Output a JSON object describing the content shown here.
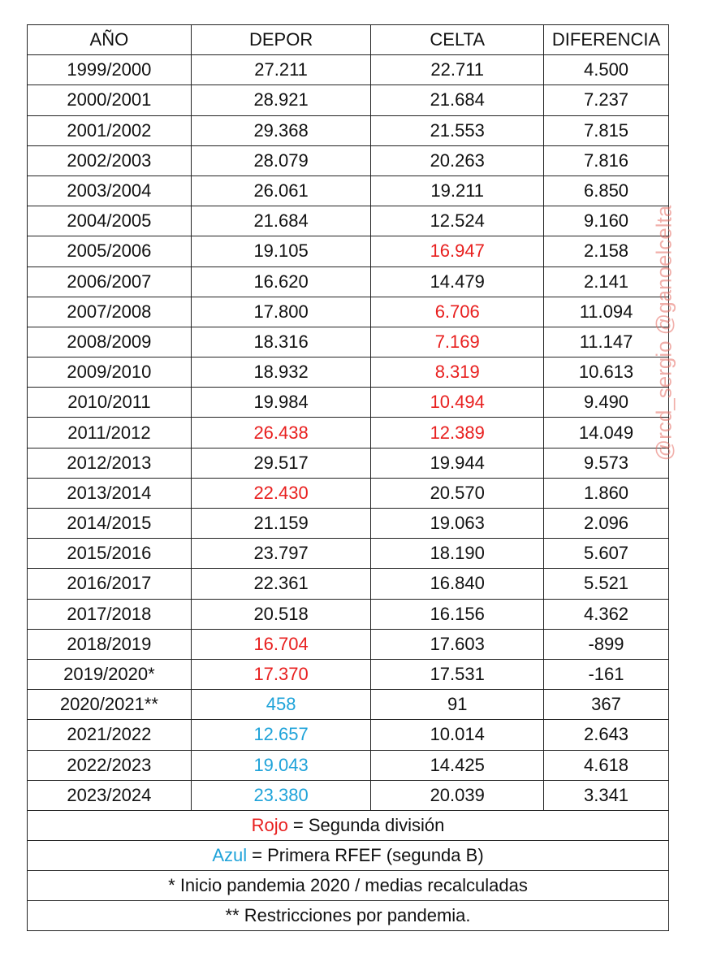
{
  "table": {
    "header": [
      "AÑO",
      "DEPOR",
      "CELTA",
      "DIFERENCIA"
    ],
    "rows": [
      [
        "1999/2000",
        "27.211",
        "22.711",
        "4.500"
      ],
      [
        "2000/2001",
        "28.921",
        "21.684",
        "7.237"
      ],
      [
        "2001/2002",
        "29.368",
        "21.553",
        "7.815"
      ],
      [
        "2002/2003",
        "28.079",
        "20.263",
        "7.816"
      ],
      [
        "2003/2004",
        "26.061",
        "19.211",
        "6.850"
      ],
      [
        "2004/2005",
        "21.684",
        "12.524",
        "9.160"
      ],
      [
        "2005/2006",
        "19.105",
        "16.947",
        "2.158"
      ],
      [
        "2006/2007",
        "16.620",
        "14.479",
        "2.141"
      ],
      [
        "2007/2008",
        "17.800",
        "6.706",
        "11.094"
      ],
      [
        "2008/2009",
        "18.316",
        "7.169",
        "11.147"
      ],
      [
        "2009/2010",
        "18.932",
        "8.319",
        "10.613"
      ],
      [
        "2010/2011",
        "19.984",
        "10.494",
        "9.490"
      ],
      [
        "2011/2012",
        "26.438",
        "12.389",
        "14.049"
      ],
      [
        "2012/2013",
        "29.517",
        "19.944",
        "9.573"
      ],
      [
        "2013/2014",
        "22.430",
        "20.570",
        "1.860"
      ],
      [
        "2014/2015",
        "21.159",
        "19.063",
        "2.096"
      ],
      [
        "2015/2016",
        "23.797",
        "18.190",
        "5.607"
      ],
      [
        "2016/2017",
        "22.361",
        "16.840",
        "5.521"
      ],
      [
        "2017/2018",
        "20.518",
        "16.156",
        "4.362"
      ],
      [
        "2018/2019",
        "16.704",
        "17.603",
        "-899"
      ],
      [
        "2019/2020*",
        "17.370",
        "17.531",
        "-161"
      ],
      [
        "2020/2021**",
        "458",
        "91",
        "367"
      ],
      [
        "2021/2022",
        "12.657",
        "10.014",
        "2.643"
      ],
      [
        "2022/2023",
        "19.043",
        "14.425",
        "4.618"
      ],
      [
        "2023/2024",
        "23.380",
        "20.039",
        "3.341"
      ]
    ],
    "cell_colors": [
      [
        null,
        null,
        null,
        null
      ],
      [
        null,
        null,
        null,
        null
      ],
      [
        null,
        null,
        null,
        null
      ],
      [
        null,
        null,
        null,
        null
      ],
      [
        null,
        null,
        null,
        null
      ],
      [
        null,
        null,
        null,
        null
      ],
      [
        null,
        null,
        "#e8201f",
        null
      ],
      [
        null,
        null,
        null,
        null
      ],
      [
        null,
        null,
        "#e8201f",
        null
      ],
      [
        null,
        null,
        "#e8201f",
        null
      ],
      [
        null,
        null,
        "#e8201f",
        null
      ],
      [
        null,
        null,
        "#e8201f",
        null
      ],
      [
        null,
        "#e8201f",
        "#e8201f",
        null
      ],
      [
        null,
        null,
        null,
        null
      ],
      [
        null,
        "#e8201f",
        null,
        null
      ],
      [
        null,
        null,
        null,
        null
      ],
      [
        null,
        null,
        null,
        null
      ],
      [
        null,
        null,
        null,
        null
      ],
      [
        null,
        null,
        null,
        null
      ],
      [
        null,
        "#e8201f",
        null,
        null
      ],
      [
        null,
        "#e8201f",
        null,
        null
      ],
      [
        null,
        "#1fa3d9",
        null,
        null
      ],
      [
        null,
        "#1fa3d9",
        null,
        null
      ],
      [
        null,
        "#1fa3d9",
        null,
        null
      ],
      [
        null,
        "#1fa3d9",
        null,
        null
      ]
    ],
    "notes": [
      {
        "key": "Rojo",
        "color": "#e8201f",
        "text": "= Segunda división"
      },
      {
        "key": "Azul",
        "color": "#1fa3d9",
        "text": "= Primera RFEF (segunda B)"
      },
      {
        "text": "* Inicio pandemia 2020 / medias recalculadas"
      },
      {
        "text": "** Restricciones por pandemia."
      }
    ]
  },
  "watermark": "@rcd_sergio @ganoelcelta"
}
